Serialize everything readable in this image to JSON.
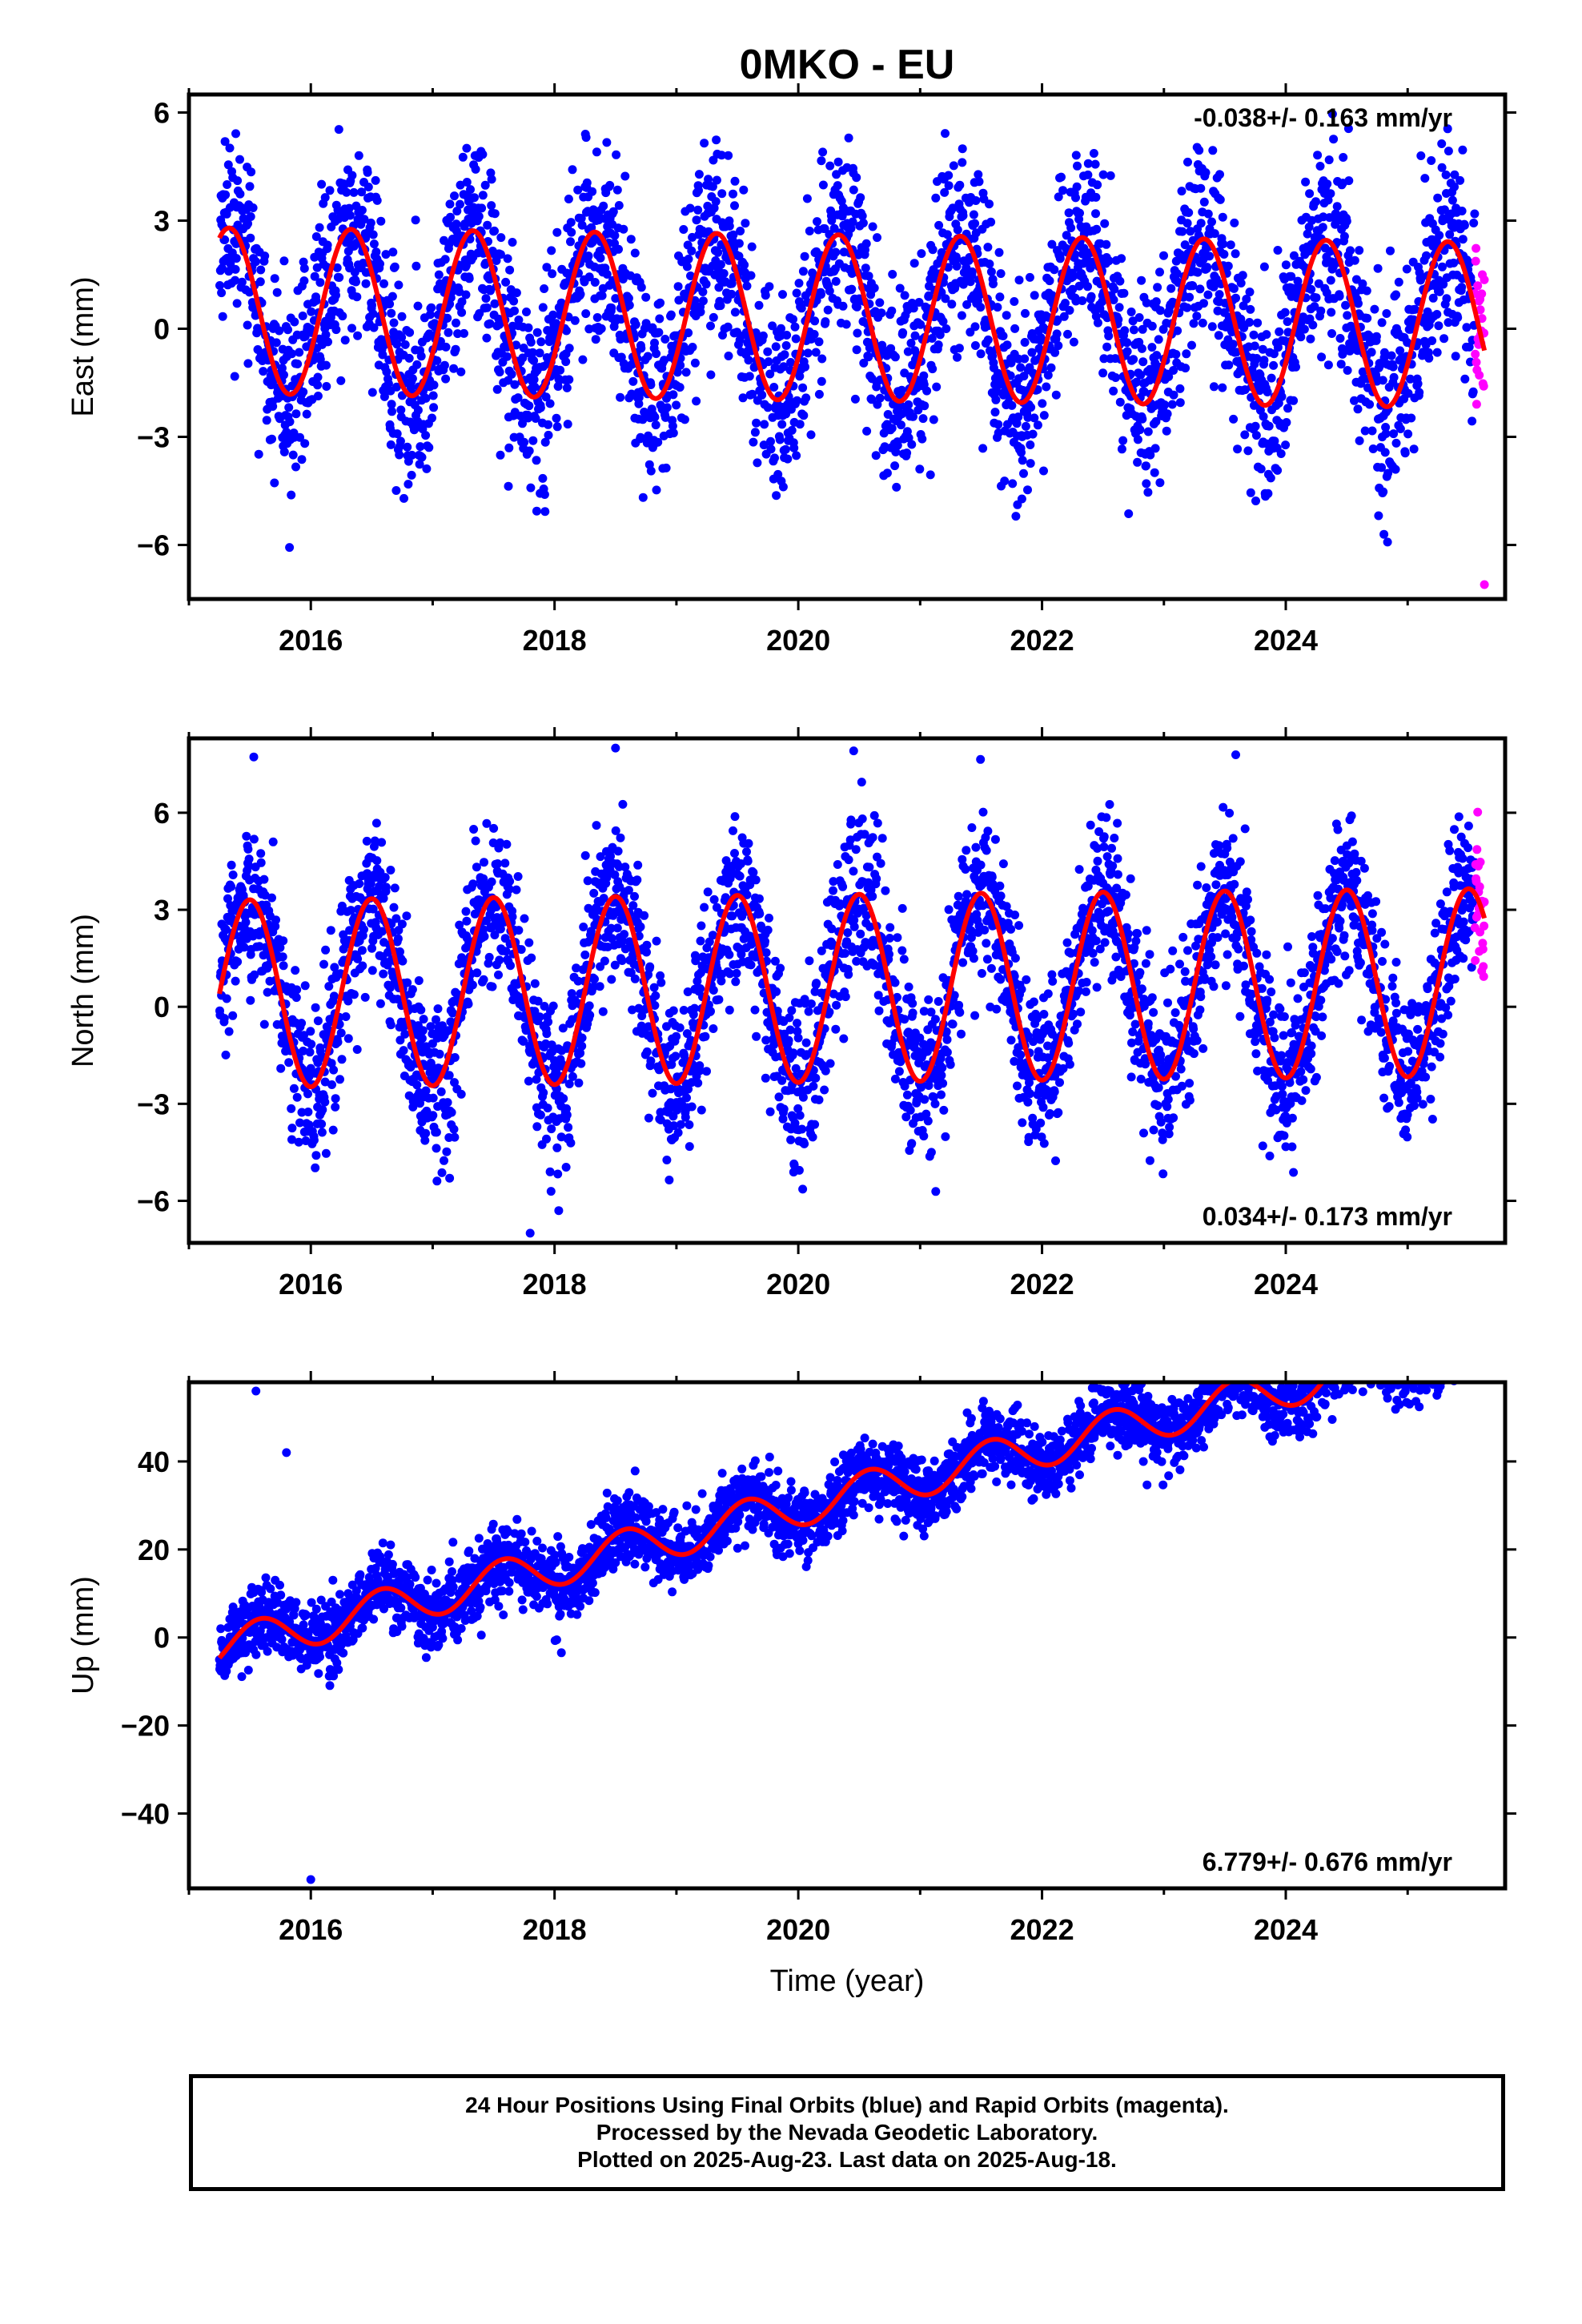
{
  "title": "0MKO - EU",
  "colors": {
    "final_orbits": "#0000ff",
    "rapid_orbits": "#ff00ff",
    "model_fit": "#ff0000",
    "frame": "#000000"
  },
  "chart_data": [
    {
      "type": "scatter",
      "name": "east",
      "ylabel": "East (mm)",
      "xlabel": "",
      "xlim": [
        2015.0,
        2025.8
      ],
      "ylim": [
        -7.5,
        6.5
      ],
      "xticks": [
        2016,
        2018,
        2020,
        2022,
        2024
      ],
      "xtick_labels": [
        "2016",
        "2018",
        "2020",
        "2022",
        "2024"
      ],
      "yticks": [
        -6,
        -3,
        0,
        3,
        6
      ],
      "ytick_labels": [
        "−6",
        "−3",
        "0",
        "3",
        "6"
      ],
      "rate_label": "-0.038+/- 0.163 mm/yr",
      "rate_label_position": "top-right",
      "data_span": [
        2015.25,
        2025.63
      ],
      "rapid_start": 2025.55,
      "model": {
        "offset": 0.5,
        "trend": -0.038,
        "amplitude": 2.3,
        "peak_phase": 0.33,
        "noise": 1.4
      },
      "outliers": [
        {
          "x": 2025.63,
          "y": -7.1
        }
      ]
    },
    {
      "type": "scatter",
      "name": "north",
      "ylabel": "North (mm)",
      "xlabel": "",
      "xlim": [
        2015.0,
        2025.8
      ],
      "ylim": [
        -7.3,
        8.3
      ],
      "xticks": [
        2016,
        2018,
        2020,
        2022,
        2024
      ],
      "xtick_labels": [
        "2016",
        "2018",
        "2020",
        "2022",
        "2024"
      ],
      "yticks": [
        -6,
        -3,
        0,
        3,
        6
      ],
      "ytick_labels": [
        "−6",
        "−3",
        "0",
        "3",
        "6"
      ],
      "rate_label": "0.034+/- 0.173 mm/yr",
      "rate_label_position": "bottom-right",
      "data_span": [
        2015.25,
        2025.63
      ],
      "rapid_start": 2025.55,
      "model": {
        "offset": 0.4,
        "trend": 0.034,
        "amplitude": 2.9,
        "peak_phase": 0.5,
        "noise": 1.3
      },
      "outliers": [
        {
          "x": 2018.5,
          "y": 8.0
        },
        {
          "x": 2017.8,
          "y": -7.0
        }
      ]
    },
    {
      "type": "scatter",
      "name": "up",
      "ylabel": "Up (mm)",
      "xlabel": "Time (year)",
      "xlim": [
        2015.0,
        2025.8
      ],
      "ylim": [
        -57,
        58
      ],
      "xticks": [
        2016,
        2018,
        2020,
        2022,
        2024
      ],
      "xtick_labels": [
        "2016",
        "2018",
        "2020",
        "2022",
        "2024"
      ],
      "yticks": [
        -40,
        -20,
        0,
        20,
        40
      ],
      "ytick_labels": [
        "−40",
        "−20",
        "0",
        "20",
        "40"
      ],
      "rate_label": "6.779+/- 0.676 mm/yr",
      "rate_label_position": "bottom-right",
      "data_span": [
        2015.25,
        2025.63
      ],
      "rapid_start": 2025.55,
      "model": {
        "offset": -2.5,
        "trend": 6.779,
        "amplitude": 4.5,
        "peak_phase": 0.58,
        "noise": 4.0
      },
      "outliers": [
        {
          "x": 2015.55,
          "y": 56
        },
        {
          "x": 2015.8,
          "y": 42
        },
        {
          "x": 2016.0,
          "y": -55
        }
      ]
    }
  ],
  "footer": {
    "line1": "24 Hour Positions Using Final Orbits (blue) and Rapid Orbits (magenta).",
    "line2": "Processed by the Nevada Geodetic Laboratory.",
    "line3": "Plotted on 2025-Aug-23. Last data on 2025-Aug-18."
  }
}
